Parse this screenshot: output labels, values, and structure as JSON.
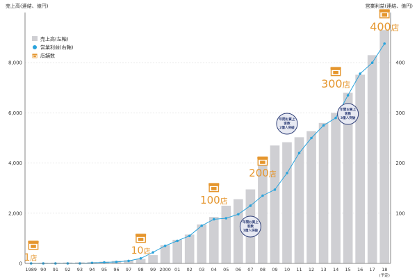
{
  "chart_data": {
    "type": "bar+line",
    "axis_titles": {
      "left": "売上高(連結、億円)",
      "right": "営業利益(連結、億円)"
    },
    "left_axis": {
      "ylim": [
        0,
        10000
      ],
      "ticks": [
        "0",
        "2,000",
        "4,000",
        "6,000",
        "8,000"
      ],
      "tick_values": [
        0,
        2000,
        4000,
        6000,
        8000
      ]
    },
    "right_axis": {
      "ylim": [
        0,
        500
      ],
      "ticks": [
        "100",
        "200",
        "300",
        "400"
      ],
      "tick_values": [
        100,
        200,
        300,
        400
      ]
    },
    "categories": [
      "1989",
      "90",
      "91",
      "92",
      "93",
      "94",
      "95",
      "96",
      "97",
      "98",
      "99",
      "2000",
      "01",
      "02",
      "03",
      "04",
      "05",
      "06",
      "07",
      "08",
      "09",
      "10",
      "11",
      "12",
      "13",
      "14",
      "15",
      "16",
      "17",
      "18"
    ],
    "category_note": {
      "index": 29,
      "text": "(予定)"
    },
    "grid": true,
    "legend": {
      "placement": "top-left",
      "items": [
        {
          "label": "売上高(左軸)",
          "marker": "bar",
          "color": "#cfcfd3"
        },
        {
          "label": "営業利益(右軸)",
          "marker": "dot",
          "color": "#2aa3dc"
        },
        {
          "label": "店舗数",
          "marker": "store-icon",
          "color": "#e5962e"
        }
      ]
    },
    "series": [
      {
        "name": "売上高(左軸)",
        "type": "bar",
        "axis": "left",
        "color": "#cfcfd3",
        "values": [
          20,
          25,
          30,
          35,
          40,
          50,
          70,
          100,
          130,
          180,
          330,
          720,
          940,
          1150,
          1550,
          1850,
          2300,
          2560,
          2950,
          4000,
          4700,
          4830,
          5030,
          5270,
          5600,
          6000,
          6800,
          7520,
          8300,
          9300
        ]
      },
      {
        "name": "営業利益(右軸)",
        "type": "line",
        "axis": "right",
        "color": "#2aa3dc",
        "values": [
          0,
          0,
          0,
          0,
          0,
          1,
          2,
          3,
          5,
          10,
          22,
          35,
          45,
          55,
          75,
          88,
          90,
          98,
          115,
          135,
          147,
          180,
          220,
          250,
          275,
          290,
          335,
          378,
          400,
          438
        ]
      }
    ],
    "store_annotations": [
      {
        "index": 0,
        "number": "1",
        "unit": "店"
      },
      {
        "index": 9,
        "number": "10",
        "unit": "店"
      },
      {
        "index": 15,
        "number": "100",
        "unit": "店"
      },
      {
        "index": 19,
        "number": "200",
        "unit": "店"
      },
      {
        "index": 25,
        "number": "300",
        "unit": "店"
      },
      {
        "index": 29,
        "number": "400",
        "unit": "店"
      }
    ],
    "bubbles": [
      {
        "index": 18,
        "lines": [
          "年間お買上",
          "客数",
          "1億人突破"
        ]
      },
      {
        "index": 21,
        "lines": [
          "年間お買上",
          "客数",
          "2億人突破"
        ]
      },
      {
        "index": 26,
        "lines": [
          "年間お買上",
          "客数",
          "3億人突破"
        ]
      }
    ]
  }
}
